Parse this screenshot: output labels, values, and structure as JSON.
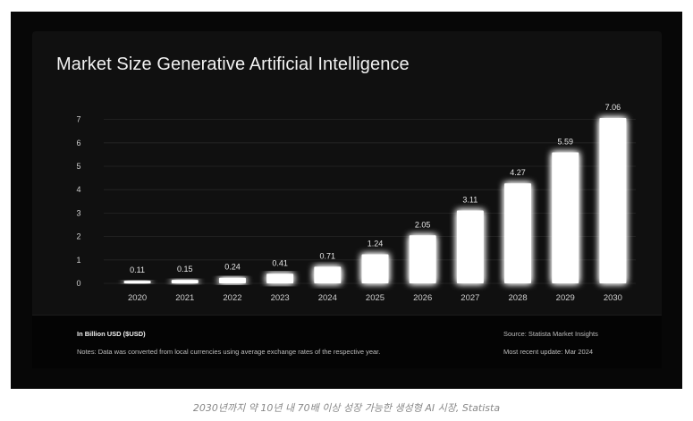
{
  "chart_data": {
    "type": "bar",
    "title": "Market Size Generative Artificial Intelligence",
    "categories": [
      "2020",
      "2021",
      "2022",
      "2023",
      "2024",
      "2025",
      "2026",
      "2027",
      "2028",
      "2029",
      "2030"
    ],
    "values": [
      0.11,
      0.15,
      0.24,
      0.41,
      0.71,
      1.24,
      2.05,
      3.11,
      4.27,
      5.59,
      7.06
    ],
    "value_labels": [
      "0.11",
      "0.15",
      "0.24",
      "0.41",
      "0.71",
      "1.24",
      "2.05",
      "3.11",
      "4.27",
      "5.59",
      "7.06"
    ],
    "ylim": [
      0,
      7
    ],
    "yticks": [
      "0",
      "1",
      "2",
      "3",
      "4",
      "5",
      "6",
      "7"
    ],
    "grid": true,
    "bar_color": "#ffffff"
  },
  "footer": {
    "unit_label": "In Billion USD ($USD)",
    "notes": "Notes: Data was converted from local currencies using average exchange rates of the respective year.",
    "source": "Source: Statista Market Insights",
    "update": "Most recent update: Mar 2024"
  },
  "caption": "2030년까지 약 10년 내 70배 이상 성장 가능한 생성형 AI 시장, Statista",
  "colors": {
    "background": "#101010",
    "text": "#f2f2f2",
    "grid": "#262626"
  }
}
